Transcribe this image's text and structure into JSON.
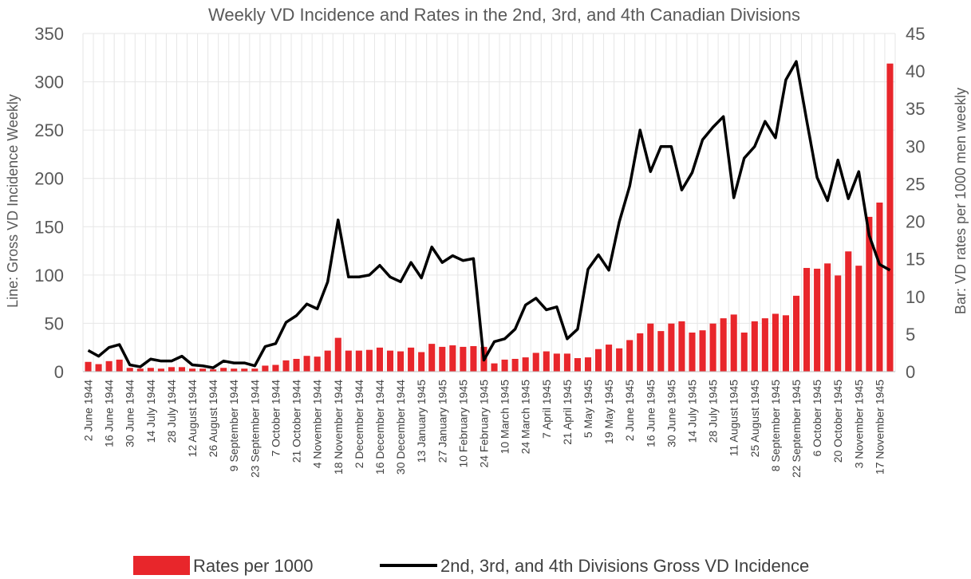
{
  "chart_data": {
    "type": "bar",
    "title": "Weekly VD Incidence and Rates in the 2nd, 3rd, and 4th Canadian Divisions",
    "ylabel_left": "Line: Gross VD Incidence Weekly",
    "ylabel_right": "Bar: VD rates per 1000 men weekly",
    "ylim_left": [
      0,
      350
    ],
    "ylim_right": [
      0,
      45
    ],
    "yticks_left": [
      "0",
      "50",
      "100",
      "150",
      "200",
      "250",
      "300",
      "350"
    ],
    "yticks_right": [
      "0",
      "5",
      "10",
      "15",
      "20",
      "25",
      "30",
      "35",
      "40",
      "45"
    ],
    "grid": true,
    "legend_position": "bottom",
    "x_tick_labels": [
      "2 June 1944",
      "16 June 1944",
      "30 June 1944",
      "14 July 1944",
      "28 July 1944",
      "12 August 1944",
      "26 August 1944",
      "9 September 1944",
      "23 September 1944",
      "7 October 1944",
      "21 October 1944",
      "4 November 1944",
      "18 November 1944",
      "2 December 1944",
      "16 December 1944",
      "30 December 1944",
      "13 January 1945",
      "27 January 1945",
      "10 February 1945",
      "24 February 1945",
      "10 March 1945",
      "24 March 1945",
      "7 April 1945",
      "21 April 1945",
      "5 May 1945",
      "19 May 1945",
      "2 June 1945",
      "16 June 1945",
      "30 June 1945",
      "14 July 1945",
      "28 July 1945",
      "11 August 1945",
      "25 August 1945",
      "8 September 1945",
      "22 September 1945",
      "6 October 1945",
      "20 October 1945",
      "3 November 1945",
      "17 November 1945"
    ],
    "series": [
      {
        "name": "Rates per 1000",
        "type": "bar",
        "axis": "right",
        "color": "#e8262b",
        "values": [
          1.3,
          1.0,
          1.4,
          1.6,
          0.5,
          0.4,
          0.5,
          0.4,
          0.6,
          0.6,
          0.4,
          0.4,
          0.3,
          0.5,
          0.4,
          0.4,
          0.4,
          0.8,
          0.9,
          1.5,
          1.7,
          2.1,
          2.0,
          2.8,
          4.5,
          2.8,
          2.8,
          2.9,
          3.2,
          2.8,
          2.7,
          3.2,
          2.6,
          3.7,
          3.3,
          3.5,
          3.3,
          3.4,
          3.3,
          1.1,
          1.6,
          1.7,
          1.9,
          2.5,
          2.7,
          2.4,
          2.4,
          1.8,
          1.9,
          3.0,
          3.6,
          3.1,
          4.2,
          5.1,
          6.4,
          5.4,
          6.4,
          6.7,
          5.2,
          5.5,
          6.4,
          7.1,
          7.6,
          5.2,
          6.7,
          7.1,
          7.7,
          7.5,
          10.1,
          13.8,
          13.7,
          14.4,
          12.8,
          16.0,
          14.1,
          20.6,
          22.5,
          41.0
        ]
      },
      {
        "name": "2nd, 3rd, and 4th Divisions Gross VD Incidence",
        "type": "line",
        "axis": "left",
        "color": "#000000",
        "values": [
          22,
          16,
          25,
          28,
          7,
          5,
          13,
          11,
          11,
          16,
          7,
          6,
          4,
          11,
          9,
          9,
          6,
          26,
          29,
          51,
          58,
          70,
          65,
          93,
          157,
          98,
          98,
          100,
          110,
          98,
          93,
          113,
          97,
          129,
          113,
          120,
          115,
          117,
          12,
          31,
          34,
          44,
          69,
          76,
          64,
          67,
          34,
          44,
          106,
          121,
          105,
          155,
          192,
          250,
          207,
          233,
          233,
          188,
          206,
          240,
          253,
          264,
          180,
          221,
          233,
          259,
          242,
          302,
          321,
          260,
          201,
          177,
          219,
          179,
          207,
          141,
          111,
          105
        ]
      }
    ]
  }
}
